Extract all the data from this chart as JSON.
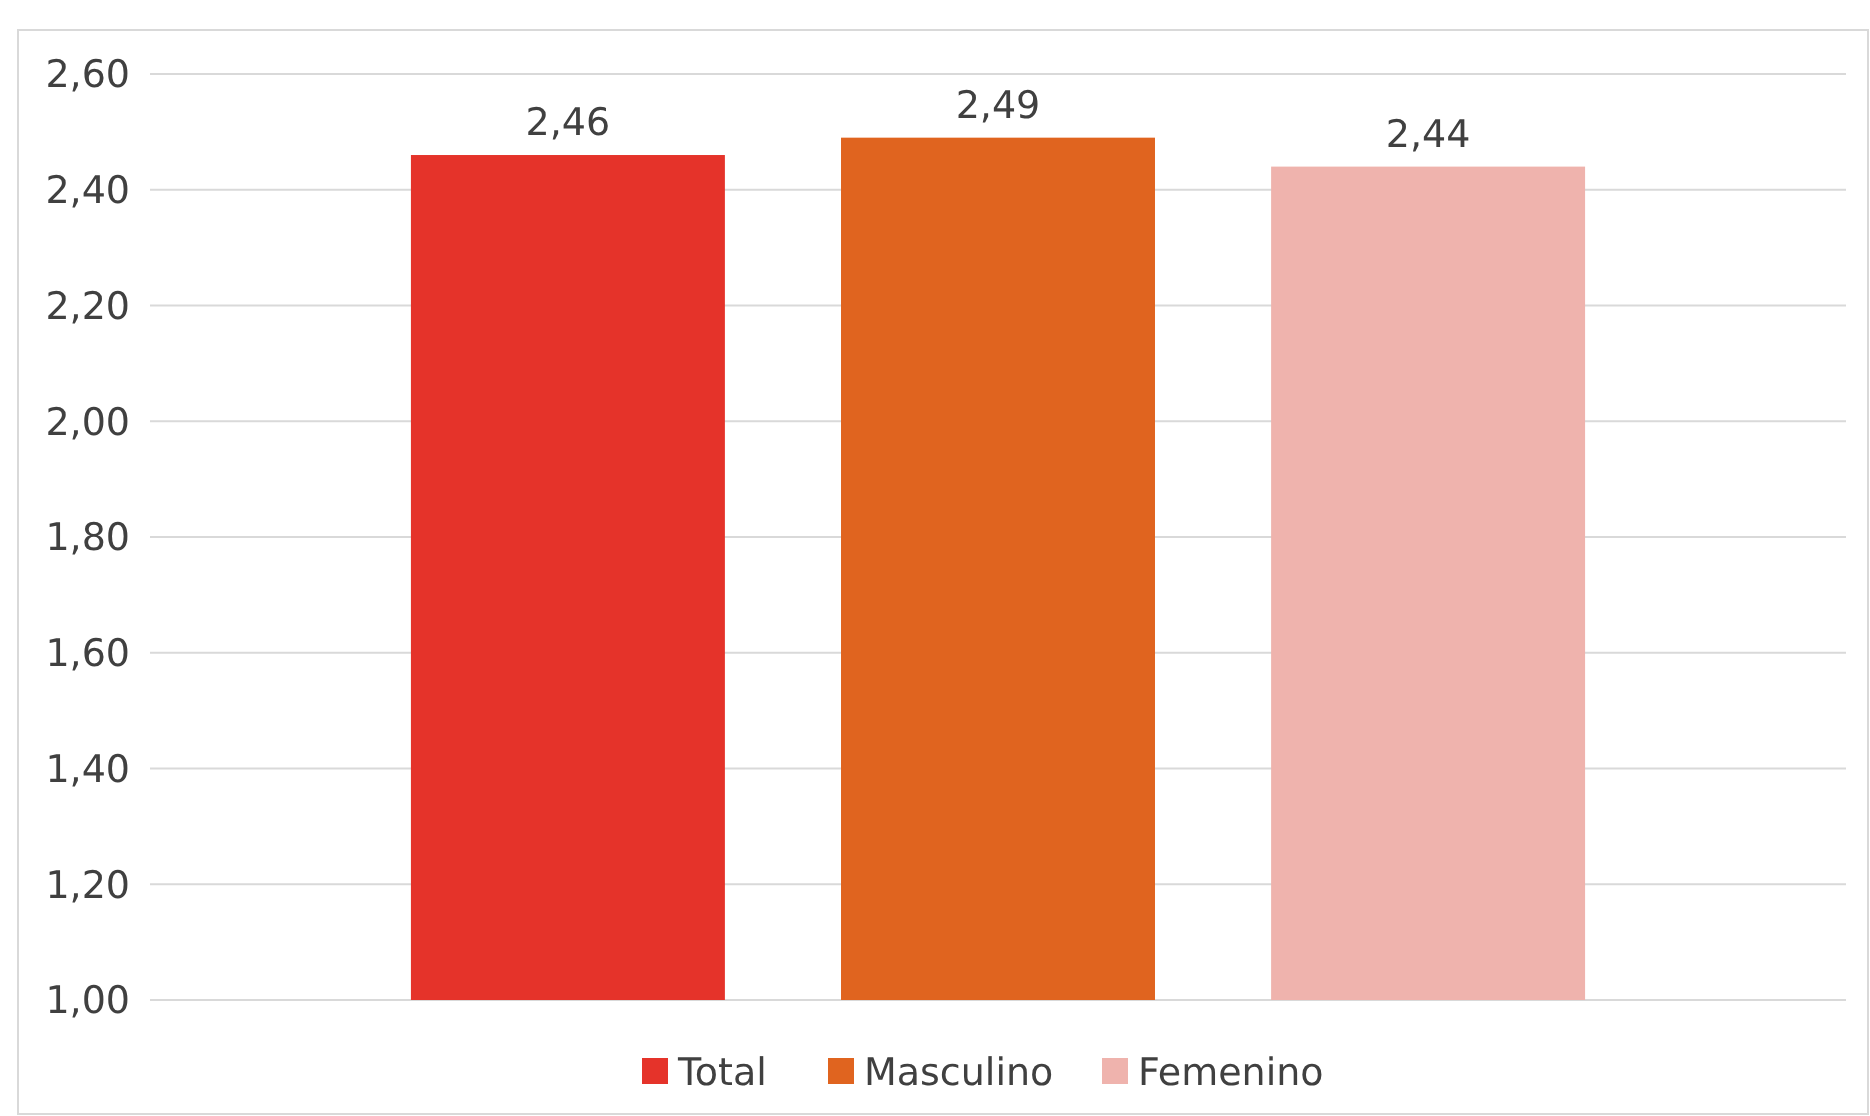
{
  "chart_data": {
    "type": "bar",
    "categories": [
      null
    ],
    "series": [
      {
        "name": "Total",
        "color": "#e5332a",
        "values": [
          2.46
        ],
        "value_labels": [
          "2,46"
        ]
      },
      {
        "name": "Masculino",
        "color": "#e0641f",
        "values": [
          2.49
        ],
        "value_labels": [
          "2,49"
        ]
      },
      {
        "name": "Femenino",
        "color": "#efb3ad",
        "values": [
          2.44
        ],
        "value_labels": [
          "2,44"
        ]
      }
    ],
    "ylim": [
      1,
      2.6
    ],
    "yticks": [
      {
        "value": 1,
        "label": "1,00"
      },
      {
        "value": 1.2,
        "label": "1,20"
      },
      {
        "value": 1.4,
        "label": "1,40"
      },
      {
        "value": 1.6,
        "label": "1,60"
      },
      {
        "value": 1.8,
        "label": "1,80"
      },
      {
        "value": 2,
        "label": "2,00"
      },
      {
        "value": 2.2,
        "label": "2,20"
      },
      {
        "value": 2.4,
        "label": "2,40"
      },
      {
        "value": 2.6,
        "label": "2,60"
      }
    ],
    "grid": "y",
    "legend": "bottom"
  }
}
